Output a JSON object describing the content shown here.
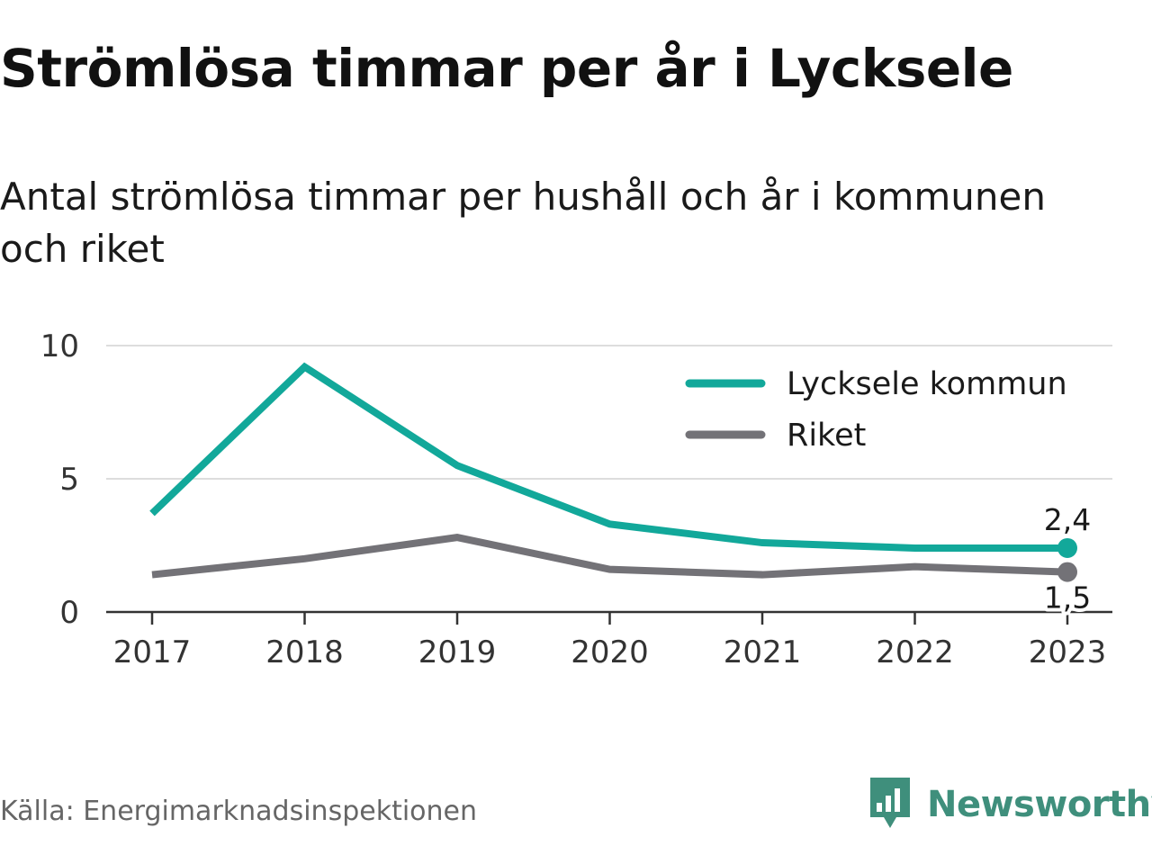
{
  "header": {
    "title": "Strömlösa timmar per år i Lycksele",
    "subtitle": "Antal strömlösa timmar per hushåll och år i kommunen och riket"
  },
  "footer": {
    "source": "Källa: Energimarknadsinspektionen",
    "brand": "Newsworthy",
    "brand_icon": "bar-chart-speech-bubble-icon"
  },
  "colors": {
    "lycksele": "#12a89a",
    "riket": "#737277",
    "grid": "#dddddd",
    "axis": "#333333",
    "brand": "#3f8f7c"
  },
  "chart_data": {
    "type": "line",
    "title": "Strömlösa timmar per år i Lycksele",
    "subtitle": "Antal strömlösa timmar per hushåll och år i kommunen och riket",
    "xlabel": "",
    "ylabel": "",
    "categories": [
      "2017",
      "2018",
      "2019",
      "2020",
      "2021",
      "2022",
      "2023"
    ],
    "ylim": [
      0,
      10
    ],
    "yticks": [
      0,
      5,
      10
    ],
    "ytick_labels": [
      "0",
      "5",
      "10"
    ],
    "grid": true,
    "legend_position": "top-right",
    "series": [
      {
        "name": "Lycksele kommun",
        "values": [
          3.7,
          9.2,
          5.5,
          3.3,
          2.6,
          2.4,
          2.4
        ],
        "end_label": "2,4"
      },
      {
        "name": "Riket",
        "values": [
          1.4,
          2.0,
          2.8,
          1.6,
          1.4,
          1.7,
          1.5
        ],
        "end_label": "1,5"
      }
    ]
  }
}
